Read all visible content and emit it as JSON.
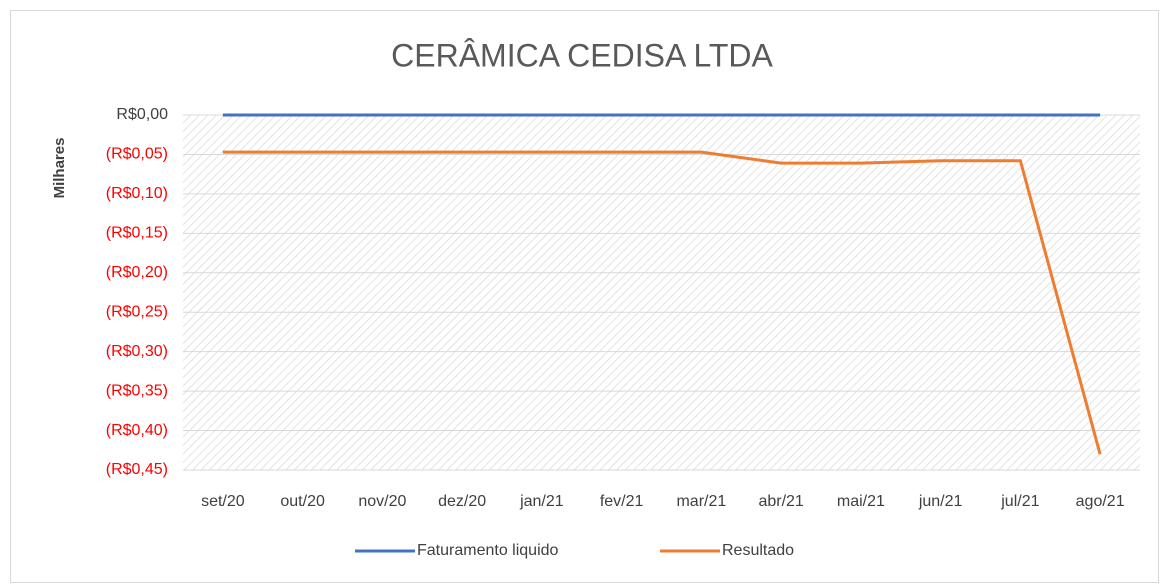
{
  "chart_data": {
    "type": "line",
    "title": "CERÂMICA CEDISA LTDA",
    "y_label": "Milhares",
    "categories": [
      "set/20",
      "out/20",
      "nov/20",
      "dez/20",
      "jan/21",
      "fev/21",
      "mar/21",
      "abr/21",
      "mai/21",
      "jun/21",
      "jul/21",
      "ago/21"
    ],
    "series": [
      {
        "name": "Faturamento liquido",
        "color": "#4472c4",
        "values": [
          0,
          0,
          0,
          0,
          0,
          0,
          0,
          0,
          0,
          0,
          0,
          0
        ]
      },
      {
        "name": "Resultado",
        "color": "#ed7d31",
        "values": [
          -0.047,
          -0.047,
          -0.047,
          -0.047,
          -0.047,
          -0.047,
          -0.047,
          -0.061,
          -0.061,
          -0.058,
          -0.058,
          -0.43
        ]
      }
    ],
    "ylim": [
      -0.45,
      0
    ],
    "yticks": [
      {
        "value": 0,
        "label": "R$0,00"
      },
      {
        "value": -0.05,
        "label": "(R$0,05)"
      },
      {
        "value": -0.1,
        "label": "(R$0,10)"
      },
      {
        "value": -0.15,
        "label": "(R$0,15)"
      },
      {
        "value": -0.2,
        "label": "(R$0,20)"
      },
      {
        "value": -0.25,
        "label": "(R$0,25)"
      },
      {
        "value": -0.3,
        "label": "(R$0,30)"
      },
      {
        "value": -0.35,
        "label": "(R$0,35)"
      },
      {
        "value": -0.4,
        "label": "(R$0,40)"
      },
      {
        "value": -0.45,
        "label": "(R$0,45)"
      }
    ],
    "negative_color": "#ff0000",
    "grid": true,
    "legend": "bottom"
  }
}
